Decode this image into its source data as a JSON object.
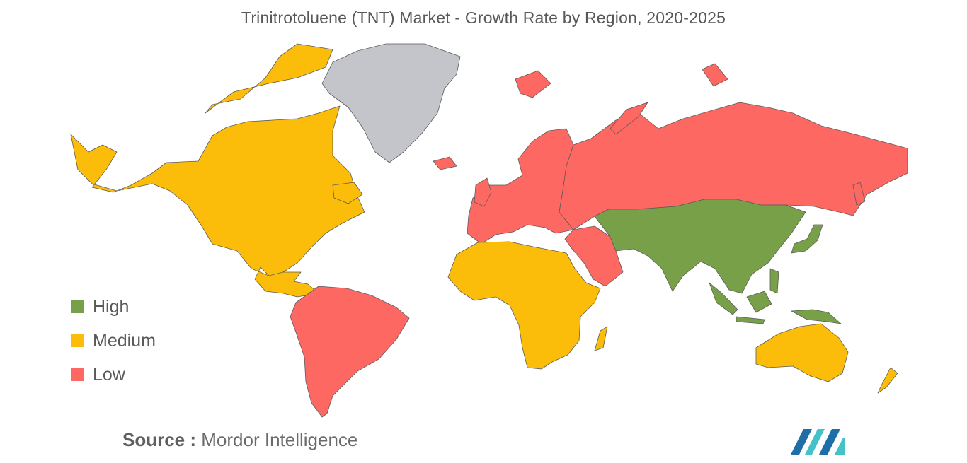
{
  "title": "Trinitrotoluene (TNT) Market - Growth Rate by Region, 2020-2025",
  "legend": [
    {
      "label": "High",
      "color": "#77a048"
    },
    {
      "label": "Medium",
      "color": "#fbbd09"
    },
    {
      "label": "Low",
      "color": "#fe6862"
    }
  ],
  "no_data_color": "#c3c5ca",
  "regions": [
    {
      "name": "North America",
      "level": "Medium"
    },
    {
      "name": "South America",
      "level": "Low"
    },
    {
      "name": "Europe",
      "level": "Low"
    },
    {
      "name": "Russia",
      "level": "Low"
    },
    {
      "name": "Middle East",
      "level": "Low"
    },
    {
      "name": "Africa",
      "level": "Medium"
    },
    {
      "name": "Asia-Pacific",
      "level": "High"
    },
    {
      "name": "Australia & New Zealand",
      "level": "Medium"
    },
    {
      "name": "Greenland",
      "level": "No data"
    }
  ],
  "source": {
    "key": "Source :",
    "value": "Mordor Intelligence"
  },
  "logo": {
    "icon": "mordor-intelligence-logo-icon",
    "colors": [
      "#1e6ea8",
      "#43c3c8"
    ]
  }
}
